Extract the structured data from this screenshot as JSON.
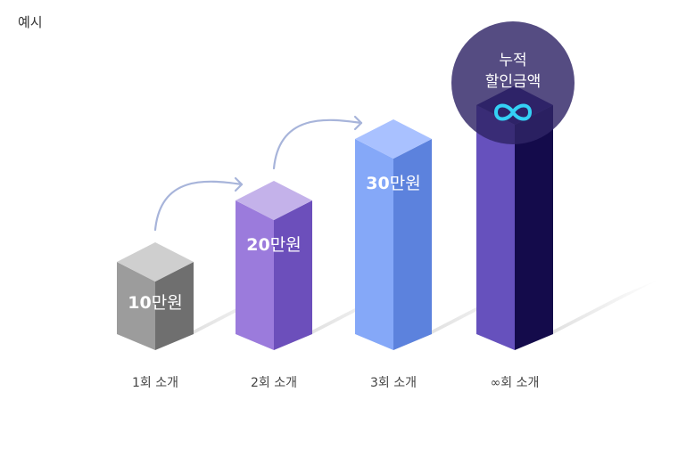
{
  "corner_label": "예시",
  "chart_data": {
    "type": "bar",
    "style": "3d-columns",
    "categories": [
      "1회 소개",
      "2회 소개",
      "3회 소개",
      "∞회 소개"
    ],
    "values": [
      10,
      20,
      30,
      null
    ],
    "value_labels": [
      {
        "number": "10",
        "unit": "만원"
      },
      {
        "number": "20",
        "unit": "만원"
      },
      {
        "number": "30",
        "unit": "만원"
      },
      {
        "number": "",
        "unit": ""
      }
    ],
    "unit": "만원",
    "title": "",
    "xlabel": "",
    "ylabel": "",
    "grid": false,
    "legend": "none",
    "colors": [
      {
        "top": "#cfcfcf",
        "front": "#9c9c9c",
        "side": "#6f6f6f"
      },
      {
        "top": "#c4b2ea",
        "front": "#9b7bdc",
        "side": "#6c4fbb"
      },
      {
        "top": "#a9c1ff",
        "front": "#85a8f8",
        "side": "#5c82dd"
      },
      {
        "top": "#2a1f6e",
        "front": "#6651bd",
        "side": "#140b4b"
      }
    ],
    "badge": {
      "lines": [
        "누적",
        "할인금액"
      ],
      "symbol": "∞",
      "circle_color": "#2f2466",
      "symbol_color": "#34d1f5"
    },
    "arrow_color": "#a7b4da"
  }
}
